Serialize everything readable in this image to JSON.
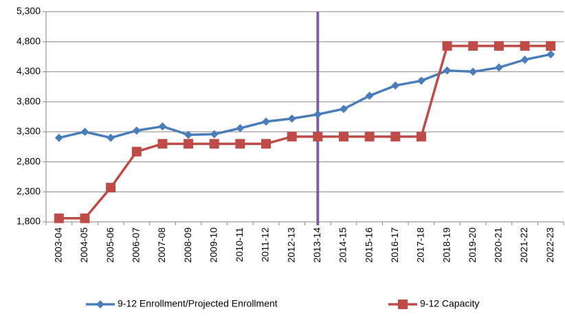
{
  "chart_data": {
    "type": "line",
    "categories": [
      "2003-04",
      "2004-05",
      "2005-06",
      "2006-07",
      "2007-08",
      "2008-09",
      "2009-10",
      "2010-11",
      "2011-12",
      "2012-13",
      "2013-14",
      "2014-15",
      "2015-16",
      "2016-17",
      "2017-18",
      "2018-19",
      "2019-20",
      "2020-21",
      "2021-22",
      "2022-23"
    ],
    "series": [
      {
        "name": "9-12 Enrollment/Projected Enrollment",
        "color": "#4a7ebb",
        "marker": "diamond",
        "values": [
          3200,
          3300,
          3200,
          3320,
          3390,
          3250,
          3260,
          3360,
          3470,
          3520,
          3590,
          3680,
          3900,
          4070,
          4150,
          4320,
          4300,
          4370,
          4500,
          4590
        ]
      },
      {
        "name": "9-12 Capacity",
        "color": "#be4b48",
        "marker": "square",
        "values": [
          1860,
          1860,
          2370,
          2970,
          3100,
          3100,
          3100,
          3100,
          3100,
          3220,
          3220,
          3220,
          3220,
          3220,
          3220,
          4730,
          4730,
          4730,
          4730,
          4730
        ]
      }
    ],
    "ylim": [
      1800,
      5300
    ],
    "yticks": [
      {
        "value": 1800,
        "label": "1,800"
      },
      {
        "value": 2300,
        "label": "2,300"
      },
      {
        "value": 2800,
        "label": "2,800"
      },
      {
        "value": 3300,
        "label": "3,300"
      },
      {
        "value": 3800,
        "label": "3,800"
      },
      {
        "value": 4300,
        "label": "4,300"
      },
      {
        "value": 4800,
        "label": "4,800"
      },
      {
        "value": 5300,
        "label": "5,300"
      }
    ],
    "grid": true,
    "legend": "bottom",
    "vertical_line_at": "2013-14",
    "vertical_line_color": "#7f5fa0"
  }
}
